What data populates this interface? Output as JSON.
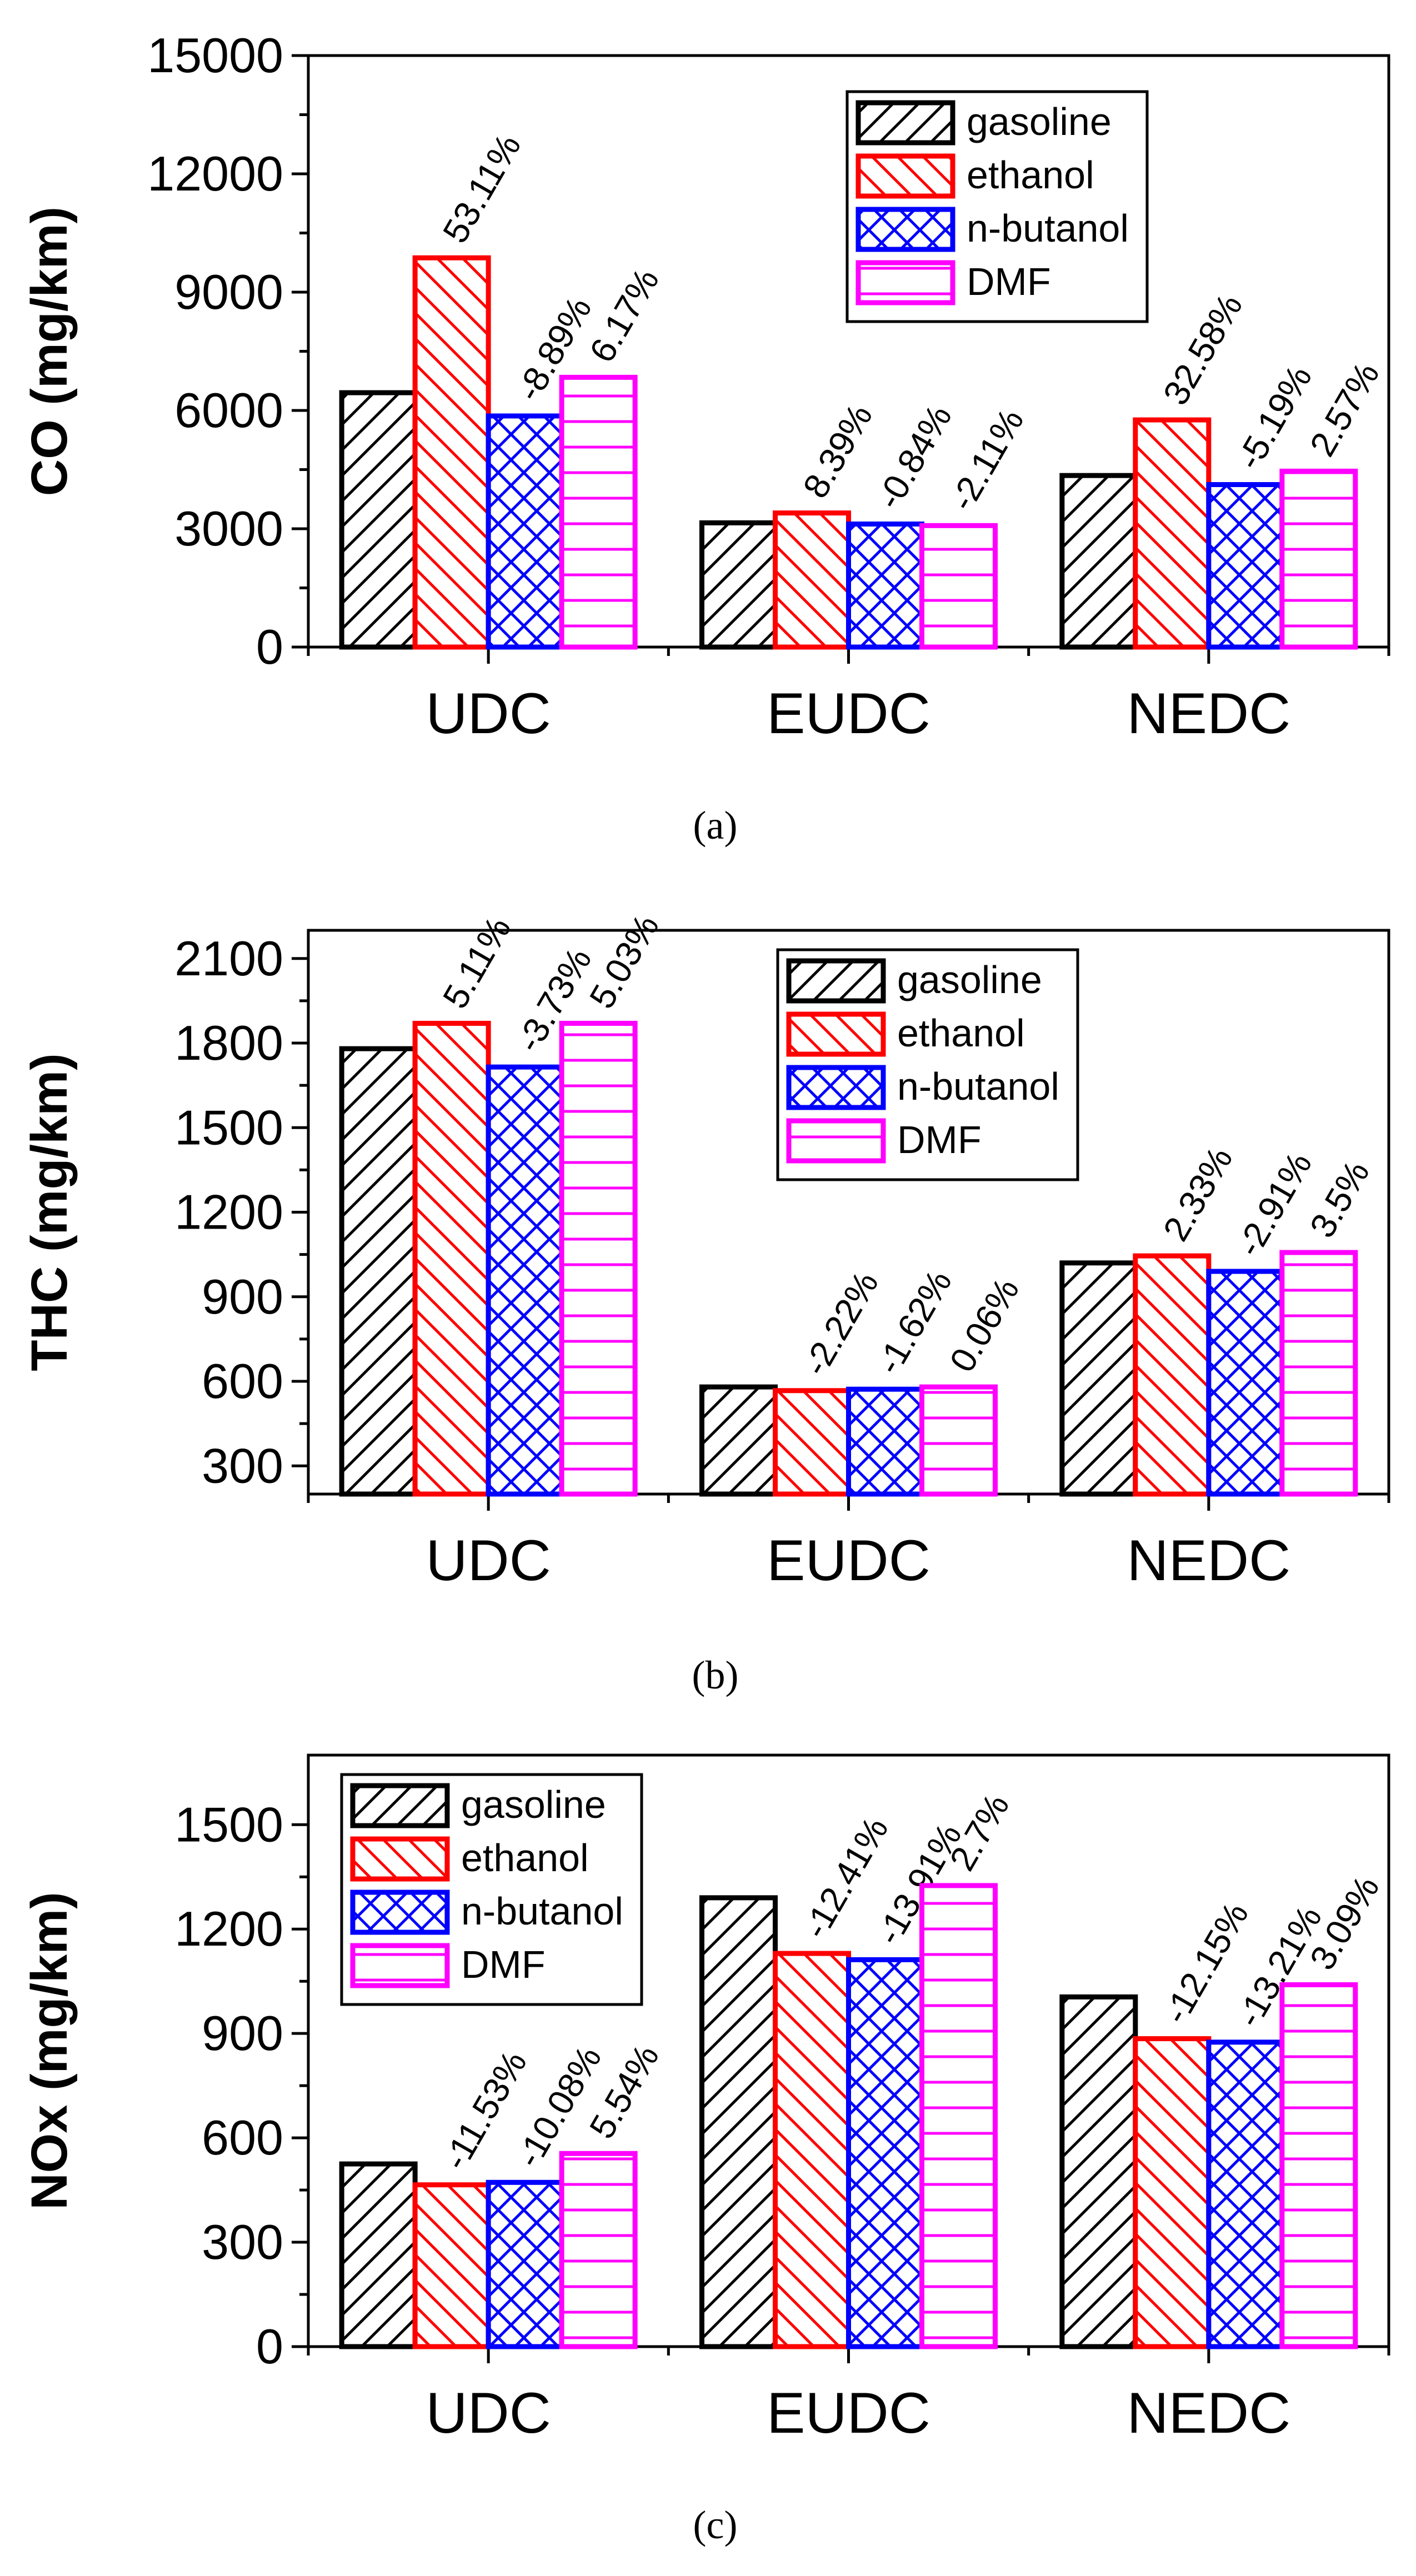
{
  "colors": {
    "gasoline": "#000000",
    "ethanol": "#ff0000",
    "n-butanol": "#0000ff",
    "DMF": "#ff00ff",
    "background": "#ffffff"
  },
  "chart_data": [
    {
      "type": "bar",
      "caption": "(a)",
      "ylabel": "CO (mg/km)",
      "xlabel": "",
      "categories": [
        "UDC",
        "EUDC",
        "NEDC"
      ],
      "ylim": [
        0,
        15000
      ],
      "yticks": [
        0,
        3000,
        6000,
        9000,
        12000,
        15000
      ],
      "yticklabels": [
        "0",
        "3000",
        "6000",
        "9000",
        "12000",
        "15000"
      ],
      "legend": {
        "position": "top-right",
        "entries": [
          "gasoline",
          "ethanol",
          "n-butanol",
          "DMF"
        ]
      },
      "series": [
        {
          "name": "gasoline",
          "pattern": "diag-right",
          "values": [
            6450,
            3150,
            4350
          ],
          "labels": [
            "",
            "",
            ""
          ]
        },
        {
          "name": "ethanol",
          "pattern": "diag-left",
          "values": [
            9870,
            3400,
            5760
          ],
          "labels": [
            "53.11%",
            "8.39%",
            "32.58%"
          ]
        },
        {
          "name": "n-butanol",
          "pattern": "cross",
          "values": [
            5860,
            3120,
            4120
          ],
          "labels": [
            "-8.89%",
            "-0.84%",
            "-5.19%"
          ]
        },
        {
          "name": "DMF",
          "pattern": "horizontal",
          "values": [
            6840,
            3080,
            4460
          ],
          "labels": [
            "6.17%",
            "-2.11%",
            "2.57%"
          ]
        }
      ]
    },
    {
      "type": "bar",
      "caption": "(b)",
      "ylabel": "THC (mg/km)",
      "xlabel": "",
      "categories": [
        "UDC",
        "EUDC",
        "NEDC"
      ],
      "ylim": [
        200,
        2200
      ],
      "yticks": [
        300,
        600,
        900,
        1200,
        1500,
        1800,
        2100
      ],
      "yticklabels": [
        "300",
        "600",
        "900",
        "1200",
        "1500",
        "1800",
        "2100"
      ],
      "legend": {
        "position": "top-right",
        "entries": [
          "gasoline",
          "ethanol",
          "n-butanol",
          "DMF"
        ]
      },
      "series": [
        {
          "name": "gasoline",
          "pattern": "diag-right",
          "values": [
            1780,
            580,
            1020
          ],
          "labels": [
            "",
            "",
            ""
          ]
        },
        {
          "name": "ethanol",
          "pattern": "diag-left",
          "values": [
            1870,
            567,
            1045
          ],
          "labels": [
            "5.11%",
            "-2.22%",
            "2.33%"
          ]
        },
        {
          "name": "n-butanol",
          "pattern": "cross",
          "values": [
            1715,
            572,
            990
          ],
          "labels": [
            "-3.73%",
            "-1.62%",
            "-2.91%"
          ]
        },
        {
          "name": "DMF",
          "pattern": "horizontal",
          "values": [
            1870,
            580,
            1057
          ],
          "labels": [
            "5.03%",
            "0.06%",
            "3.5%"
          ]
        }
      ]
    },
    {
      "type": "bar",
      "caption": "(c)",
      "ylabel": "NOx (mg/km)",
      "xlabel": "",
      "categories": [
        "UDC",
        "EUDC",
        "NEDC"
      ],
      "ylim": [
        0,
        1700
      ],
      "yticks": [
        0,
        300,
        600,
        900,
        1200,
        1500
      ],
      "yticklabels": [
        "0",
        "300",
        "600",
        "900",
        "1200",
        "1500"
      ],
      "legend": {
        "position": "top-left",
        "entries": [
          "gasoline",
          "ethanol",
          "n-butanol",
          "DMF"
        ]
      },
      "series": [
        {
          "name": "gasoline",
          "pattern": "diag-right",
          "values": [
            525,
            1290,
            1005
          ],
          "labels": [
            "",
            "",
            ""
          ]
        },
        {
          "name": "ethanol",
          "pattern": "diag-left",
          "values": [
            465,
            1130,
            885
          ],
          "labels": [
            "-11.53%",
            "-12.41%",
            "-12.15%"
          ]
        },
        {
          "name": "n-butanol",
          "pattern": "cross",
          "values": [
            472,
            1112,
            875
          ],
          "labels": [
            "-10.08%",
            "-13.91%",
            "-13.21%"
          ]
        },
        {
          "name": "DMF",
          "pattern": "horizontal",
          "values": [
            555,
            1325,
            1040
          ],
          "labels": [
            "5.54%",
            "2.7%",
            "3.09%"
          ]
        }
      ]
    }
  ]
}
